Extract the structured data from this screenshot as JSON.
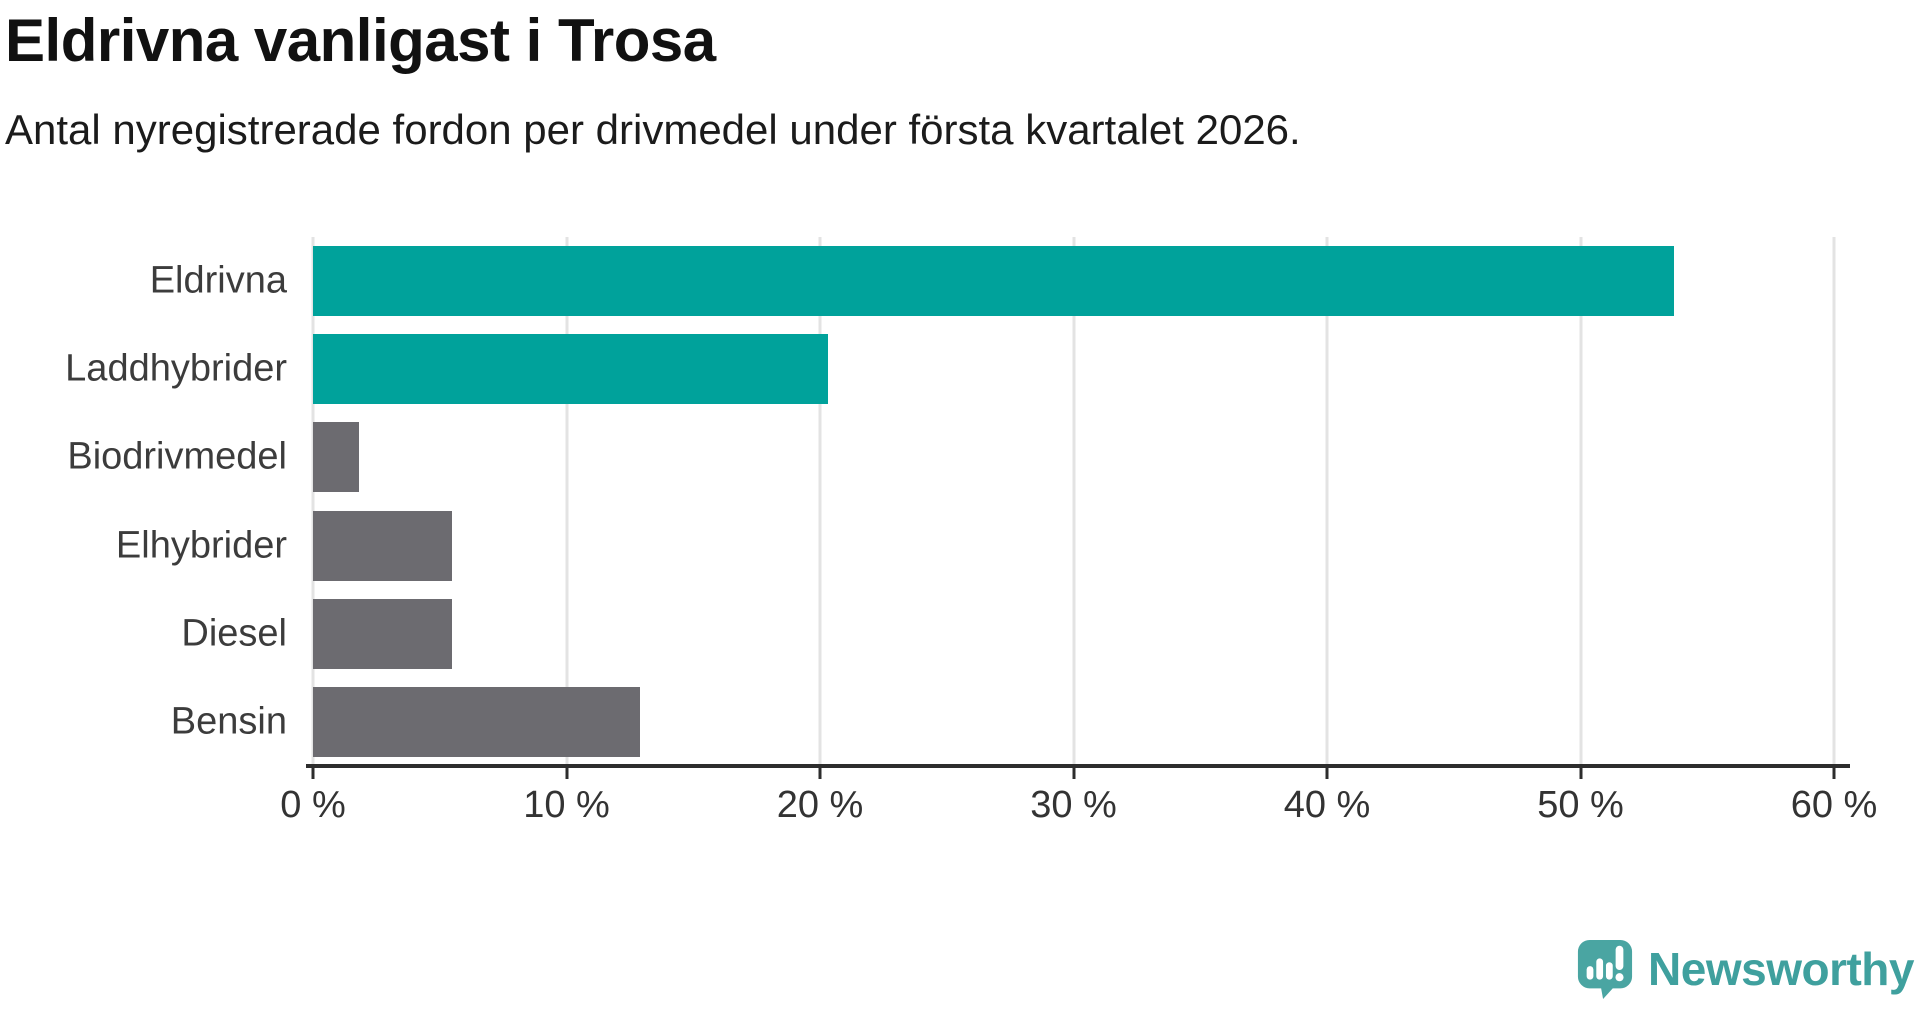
{
  "title": "Eldrivna vanligast i Trosa",
  "subtitle": "Antal nyregistrerade fordon per drivmedel under första kvartalet 2026.",
  "chart_data": {
    "type": "bar",
    "orientation": "horizontal",
    "title": "Eldrivna vanligast i Trosa",
    "subtitle": "Antal nyregistrerade fordon per drivmedel under första kvartalet 2026.",
    "categories": [
      "Eldrivna",
      "Laddhybrider",
      "Biodrivmedel",
      "Elhybrider",
      "Diesel",
      "Bensin"
    ],
    "values": [
      53.7,
      20.3,
      1.8,
      5.5,
      5.5,
      12.9
    ],
    "unit": "%",
    "xlim": [
      0,
      60
    ],
    "xticks": [
      0,
      10,
      20,
      30,
      40,
      50,
      60
    ],
    "xtick_labels": [
      "0 %",
      "10 %",
      "20 %",
      "30 %",
      "40 %",
      "50 %",
      "60 %"
    ],
    "grid": "vertical-only",
    "legend": "none",
    "bar_colors": [
      "#00a29b",
      "#00a29b",
      "#6c6b70",
      "#6c6b70",
      "#6c6b70",
      "#6c6b70"
    ]
  },
  "branding": {
    "logo_text": "Newsworthy",
    "icon": "newsworthy-speech-bubble-chart-icon"
  },
  "colors": {
    "accent_teal": "#00a29b",
    "neutral_gray": "#6c6b70",
    "logo_color": "#3fa09e",
    "logo_bubble": "#4aa5a2",
    "axis": "#2d2d2d",
    "grid": "#e3e3e3",
    "title_text": "#111111",
    "body_text": "#1b1b1b",
    "label_text": "#3c3c3c"
  }
}
